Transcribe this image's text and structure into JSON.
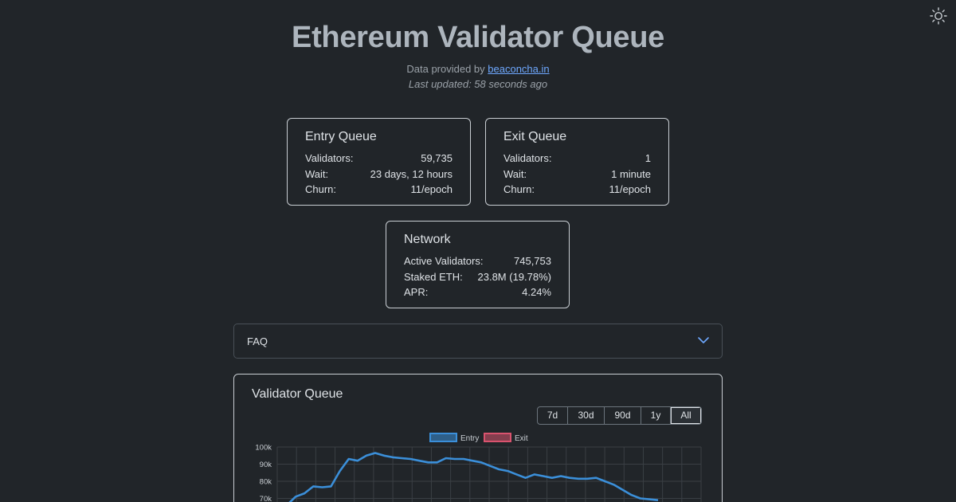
{
  "header": {
    "title": "Ethereum Validator Queue",
    "provided_prefix": "Data provided by",
    "provider_link": "beaconcha.in",
    "last_updated": "Last updated: 58 seconds ago"
  },
  "entry_queue": {
    "title": "Entry Queue",
    "rows": [
      {
        "label": "Validators:",
        "value": "59,735"
      },
      {
        "label": "Wait:",
        "value": "23 days, 12 hours"
      },
      {
        "label": "Churn:",
        "value": "11/epoch"
      }
    ]
  },
  "exit_queue": {
    "title": "Exit Queue",
    "rows": [
      {
        "label": "Validators:",
        "value": "1"
      },
      {
        "label": "Wait:",
        "value": "1 minute"
      },
      {
        "label": "Churn:",
        "value": "11/epoch"
      }
    ]
  },
  "network": {
    "title": "Network",
    "rows": [
      {
        "label": "Active Validators:",
        "value": "745,753"
      },
      {
        "label": "Staked ETH:",
        "value": "23.8M (19.78%)"
      },
      {
        "label": "APR:",
        "value": "4.24%"
      }
    ]
  },
  "faq": {
    "label": "FAQ"
  },
  "icons": {
    "theme": "sun-icon",
    "faq": "chevron-down-icon"
  },
  "colors": {
    "entry": "#3b8fd9",
    "exit": "#d9536e",
    "link": "#6ea8fe"
  },
  "chart": {
    "title": "Validator Queue",
    "ranges": [
      "7d",
      "30d",
      "90d",
      "1y",
      "All"
    ],
    "active_range": "All"
  },
  "chart_data": {
    "type": "line",
    "title": "Validator Queue",
    "ylim": [
      0,
      100000
    ],
    "y_ticks": [
      "70k",
      "80k",
      "90k",
      "100k"
    ],
    "grid": true,
    "legend_placement": "top-center",
    "series": [
      {
        "name": "Entry",
        "color": "#3b8fd9",
        "values": [
          66000,
          71000,
          73000,
          77000,
          76500,
          77000,
          86000,
          93000,
          92000,
          95000,
          96500,
          95000,
          94000,
          93500,
          93000,
          92000,
          91000,
          91000,
          93500,
          93000,
          93000,
          92000,
          91000,
          89000,
          87000,
          86000,
          84000,
          82000,
          84000,
          83000,
          82000,
          83000,
          82000,
          81500,
          81500,
          82000,
          80000,
          78000,
          75000,
          72000,
          70000,
          69500,
          69000
        ]
      },
      {
        "name": "Exit",
        "color": "#d9536e",
        "values": []
      }
    ]
  }
}
